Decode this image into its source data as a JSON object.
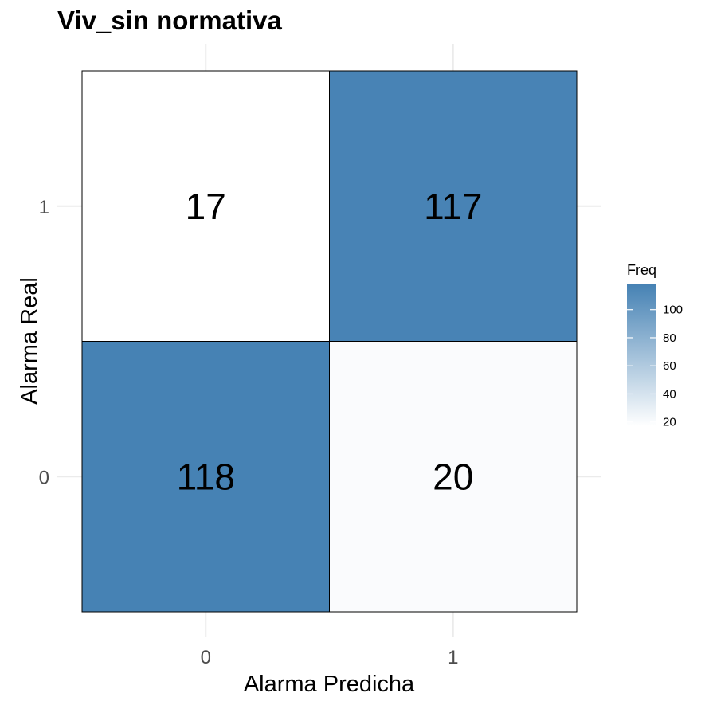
{
  "chart_data": {
    "type": "heatmap",
    "title": "Viv_sin normativa",
    "xlabel": "Alarma Predicha",
    "ylabel": "Alarma Real",
    "x_categories": [
      "0",
      "1"
    ],
    "y_categories": [
      "0",
      "1"
    ],
    "cells": [
      {
        "x": "0",
        "y": "1",
        "value": 17
      },
      {
        "x": "1",
        "y": "1",
        "value": 117
      },
      {
        "x": "0",
        "y": "0",
        "value": 118
      },
      {
        "x": "1",
        "y": "0",
        "value": 20
      }
    ],
    "legend": {
      "title": "Freq",
      "placement": "right",
      "range": [
        17,
        118
      ],
      "ticks": [
        20,
        40,
        60,
        80,
        100
      ],
      "low_color": "#ffffff",
      "high_color": "#4682b4"
    },
    "grid": true
  }
}
